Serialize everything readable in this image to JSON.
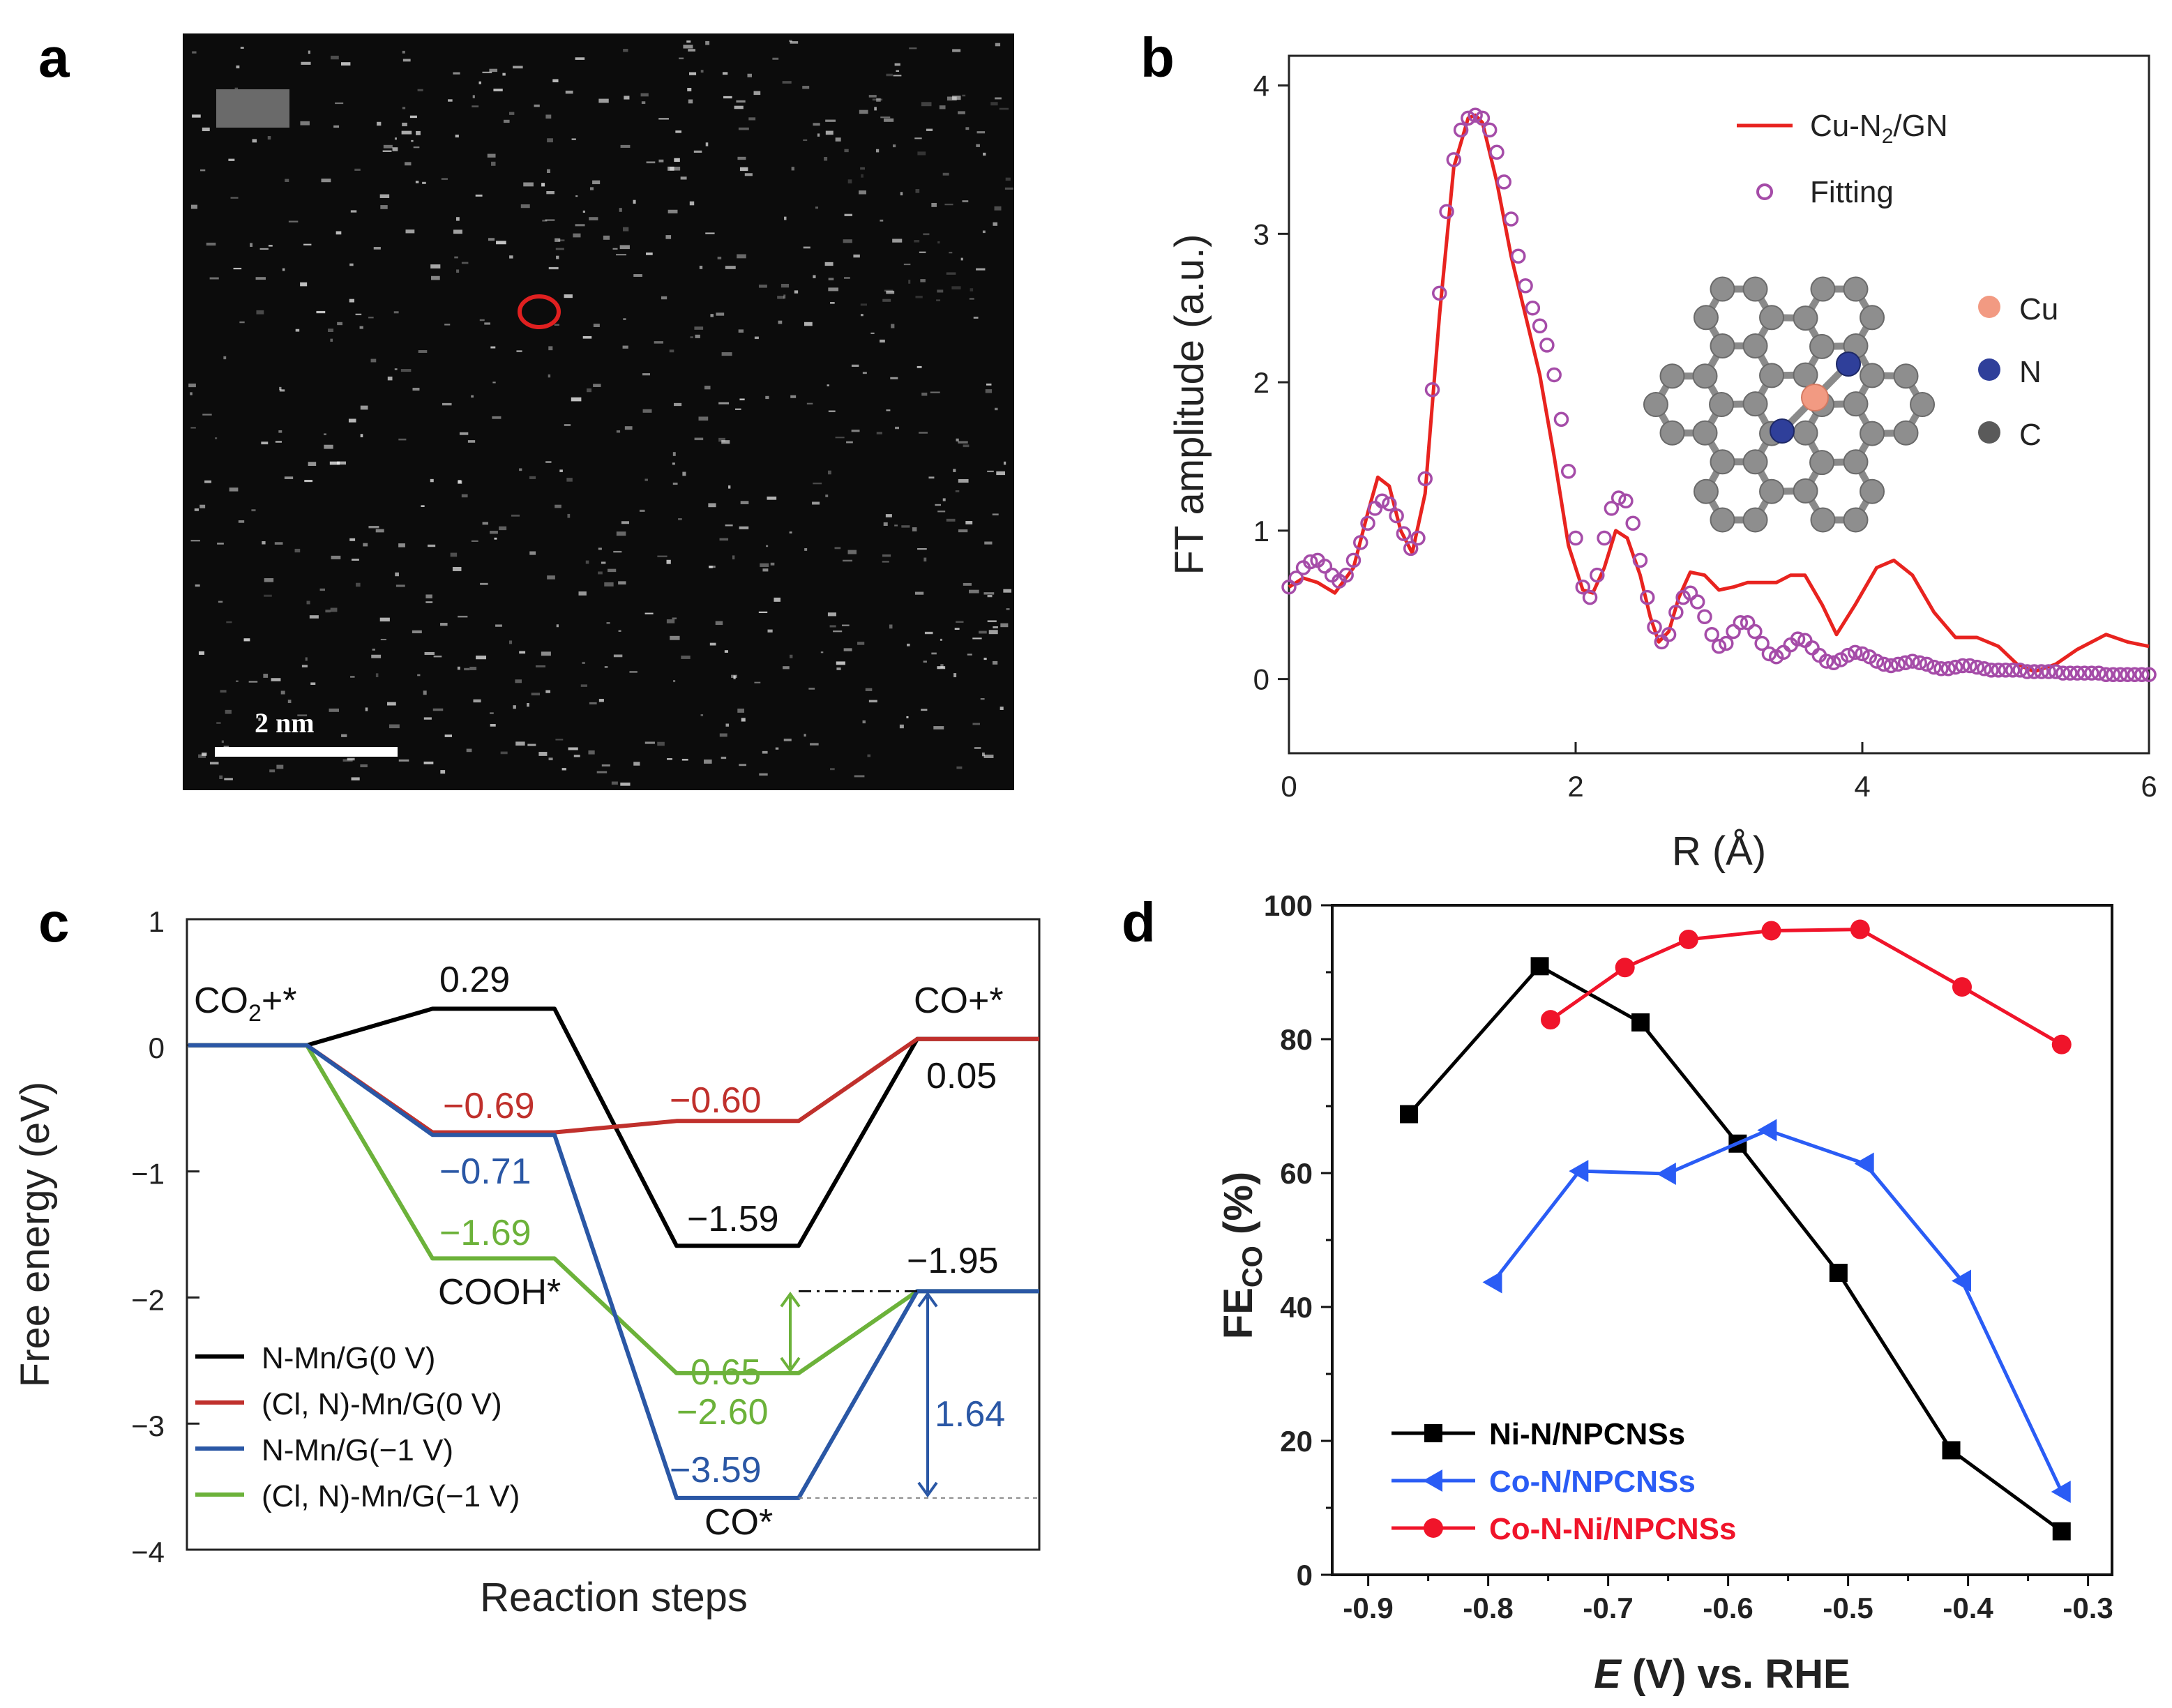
{
  "panels": {
    "a": {
      "label": "a",
      "scalebar": "2 nm"
    },
    "b": {
      "label": "b"
    },
    "c": {
      "label": "c"
    },
    "d": {
      "label": "d"
    }
  },
  "chart_data": [
    {
      "panel": "a",
      "type": "image",
      "scalebar_label": "2 nm",
      "description_colors": {
        "background": "#0c0c0c",
        "highlight": "#e02020"
      }
    },
    {
      "panel": "b",
      "type": "line",
      "xlabel": "R (Å)",
      "ylabel": "FT amplitude (a.u.)",
      "xlim": [
        0,
        6
      ],
      "ylim": [
        -0.5,
        4.2
      ],
      "xticks": [
        "0",
        "2",
        "4",
        "6"
      ],
      "yticks": [
        "0",
        "1",
        "2",
        "3",
        "4"
      ],
      "legend_position": "top-right",
      "inset_legend": [
        {
          "label": "Cu",
          "color": "#f29a82"
        },
        {
          "label": "N",
          "color": "#2f3f9a"
        },
        {
          "label": "C",
          "color": "#5a5a5a"
        }
      ],
      "series": [
        {
          "name": "Cu-N2/GN",
          "style": "line",
          "color": "#e8231f",
          "x": [
            0,
            0.1,
            0.2,
            0.32,
            0.45,
            0.55,
            0.62,
            0.7,
            0.78,
            0.86,
            0.95,
            1.05,
            1.15,
            1.25,
            1.3,
            1.35,
            1.45,
            1.55,
            1.65,
            1.75,
            1.85,
            1.95,
            2.05,
            2.12,
            2.2,
            2.28,
            2.36,
            2.45,
            2.52,
            2.58,
            2.65,
            2.72,
            2.8,
            2.9,
            3.0,
            3.1,
            3.2,
            3.3,
            3.4,
            3.5,
            3.6,
            3.72,
            3.82,
            3.95,
            4.1,
            4.22,
            4.35,
            4.5,
            4.65,
            4.8,
            4.95,
            5.08,
            5.2,
            5.35,
            5.5,
            5.7,
            5.85,
            6.0
          ],
          "y": [
            0.62,
            0.68,
            0.65,
            0.58,
            0.75,
            1.12,
            1.36,
            1.3,
            1.0,
            0.85,
            1.25,
            2.45,
            3.45,
            3.78,
            3.8,
            3.75,
            3.35,
            2.85,
            2.45,
            2.05,
            1.5,
            0.9,
            0.6,
            0.58,
            0.75,
            1.0,
            0.95,
            0.7,
            0.42,
            0.25,
            0.32,
            0.55,
            0.72,
            0.7,
            0.6,
            0.62,
            0.65,
            0.65,
            0.65,
            0.7,
            0.7,
            0.5,
            0.3,
            0.5,
            0.75,
            0.8,
            0.7,
            0.45,
            0.28,
            0.28,
            0.22,
            0.1,
            0.05,
            0.1,
            0.2,
            0.3,
            0.25,
            0.22
          ]
        },
        {
          "name": "Fitting",
          "style": "open-circles",
          "color": "#a54ca8",
          "x": [
            0,
            0.05,
            0.1,
            0.15,
            0.2,
            0.25,
            0.3,
            0.35,
            0.4,
            0.45,
            0.5,
            0.55,
            0.6,
            0.65,
            0.7,
            0.75,
            0.8,
            0.85,
            0.9,
            0.95,
            1.0,
            1.05,
            1.1,
            1.15,
            1.2,
            1.25,
            1.3,
            1.35,
            1.4,
            1.45,
            1.5,
            1.55,
            1.6,
            1.65,
            1.7,
            1.75,
            1.8,
            1.85,
            1.9,
            1.95,
            2.0,
            2.05,
            2.1,
            2.15,
            2.2,
            2.25,
            2.3,
            2.35,
            2.4,
            2.45,
            2.5,
            2.55,
            2.6,
            2.65,
            2.7,
            2.75,
            2.8,
            2.85,
            2.9,
            2.95,
            3.0,
            3.05,
            3.1,
            3.15,
            3.2,
            3.25,
            3.3,
            3.35,
            3.4,
            3.45,
            3.5,
            3.55,
            3.6,
            3.65,
            3.7,
            3.75,
            3.8,
            3.85,
            3.9,
            3.95,
            4.0,
            4.05,
            4.1,
            4.15,
            4.2,
            4.25,
            4.3,
            4.35,
            4.4,
            4.45,
            4.5,
            4.55,
            4.6,
            4.65,
            4.7,
            4.75,
            4.8,
            4.85,
            4.9,
            4.95,
            5.0,
            5.05,
            5.1,
            5.15,
            5.2,
            5.25,
            5.3,
            5.35,
            5.4,
            5.45,
            5.5,
            5.55,
            5.6,
            5.65,
            5.7,
            5.75,
            5.8,
            5.85,
            5.9,
            5.95,
            6.0
          ],
          "y": [
            0.62,
            0.68,
            0.75,
            0.79,
            0.8,
            0.76,
            0.7,
            0.66,
            0.7,
            0.8,
            0.92,
            1.05,
            1.15,
            1.2,
            1.18,
            1.1,
            0.98,
            0.88,
            0.95,
            1.35,
            1.95,
            2.6,
            3.15,
            3.5,
            3.7,
            3.78,
            3.8,
            3.78,
            3.7,
            3.55,
            3.35,
            3.1,
            2.85,
            2.65,
            2.5,
            2.38,
            2.25,
            2.05,
            1.75,
            1.4,
            0.95,
            0.62,
            0.55,
            0.7,
            0.95,
            1.15,
            1.22,
            1.2,
            1.05,
            0.8,
            0.55,
            0.35,
            0.25,
            0.3,
            0.45,
            0.55,
            0.58,
            0.52,
            0.42,
            0.3,
            0.22,
            0.24,
            0.32,
            0.38,
            0.38,
            0.32,
            0.24,
            0.17,
            0.15,
            0.18,
            0.23,
            0.27,
            0.26,
            0.21,
            0.16,
            0.12,
            0.11,
            0.13,
            0.16,
            0.18,
            0.17,
            0.15,
            0.12,
            0.1,
            0.09,
            0.1,
            0.11,
            0.12,
            0.11,
            0.1,
            0.08,
            0.07,
            0.07,
            0.08,
            0.09,
            0.09,
            0.08,
            0.07,
            0.06,
            0.06,
            0.06,
            0.06,
            0.06,
            0.05,
            0.05,
            0.05,
            0.05,
            0.05,
            0.04,
            0.04,
            0.04,
            0.04,
            0.04,
            0.04,
            0.03,
            0.03,
            0.03,
            0.03,
            0.03,
            0.03,
            0.03
          ]
        }
      ]
    },
    {
      "panel": "c",
      "type": "line",
      "xlabel": "Reaction steps",
      "ylabel": "Free energy (eV)",
      "ylim": [
        -4,
        1
      ],
      "yticks": [
        "1",
        "0",
        "−1",
        "−2",
        "−3",
        "−4"
      ],
      "legend_position": "bottom-left",
      "state_labels": [
        "CO2+*",
        "COOH*",
        "CO*",
        "CO+*"
      ],
      "series": [
        {
          "name": "N-Mn/G(0 V)",
          "color": "#000000",
          "values": [
            0,
            0.29,
            -1.59,
            0.05
          ]
        },
        {
          "name": "(Cl, N)-Mn/G(0 V)",
          "color": "#c0302c",
          "values": [
            0,
            -0.69,
            -0.6,
            0.05
          ]
        },
        {
          "name": "N-Mn/G(−1 V)",
          "color": "#2a57a5",
          "values": [
            0,
            -0.71,
            -3.59,
            -1.95
          ]
        },
        {
          "name": "(Cl, N)-Mn/G(−1 V)",
          "color": "#6cb23a",
          "values": [
            0,
            -1.69,
            -2.6,
            -1.95
          ]
        }
      ],
      "value_labels": [
        "0.29",
        "−0.69",
        "−0.60",
        "0.05",
        "−0.71",
        "−1.59",
        "−1.69",
        "−1.95",
        "0.65",
        "−2.60",
        "1.64",
        "−3.59"
      ]
    },
    {
      "panel": "d",
      "type": "line",
      "xlabel": "E (V) vs. RHE",
      "ylabel": "FECO (%)",
      "xlim": [
        -0.93,
        -0.28
      ],
      "ylim": [
        0,
        100
      ],
      "xticks": [
        "-0.9",
        "-0.8",
        "-0.7",
        "-0.6",
        "-0.5",
        "-0.4",
        "-0.3"
      ],
      "yticks": [
        "0",
        "20",
        "40",
        "60",
        "80",
        "100"
      ],
      "legend_position": "bottom-left",
      "series": [
        {
          "name": "Ni-N/NPCNSs",
          "color": "#000000",
          "marker": "square",
          "x": [
            -0.866,
            -0.757,
            -0.673,
            -0.592,
            -0.508,
            -0.414,
            -0.322
          ],
          "y": [
            68.8,
            90.9,
            82.5,
            64.4,
            45.1,
            18.6,
            6.5
          ]
        },
        {
          "name": "Co-N/NPCNSs",
          "color": "#2a5cf5",
          "marker": "triangle-left",
          "x": [
            -0.796,
            -0.724,
            -0.651,
            -0.567,
            -0.486,
            -0.405,
            -0.322
          ],
          "y": [
            43.7,
            60.3,
            59.9,
            66.4,
            61.4,
            43.9,
            12.4
          ]
        },
        {
          "name": "Co-N-Ni/NPCNSs",
          "color": "#f0142a",
          "marker": "circle",
          "x": [
            -0.748,
            -0.686,
            -0.633,
            -0.564,
            -0.49,
            -0.405,
            -0.322
          ],
          "y": [
            82.9,
            90.7,
            94.9,
            96.2,
            96.4,
            87.8,
            79.2
          ]
        }
      ]
    }
  ]
}
